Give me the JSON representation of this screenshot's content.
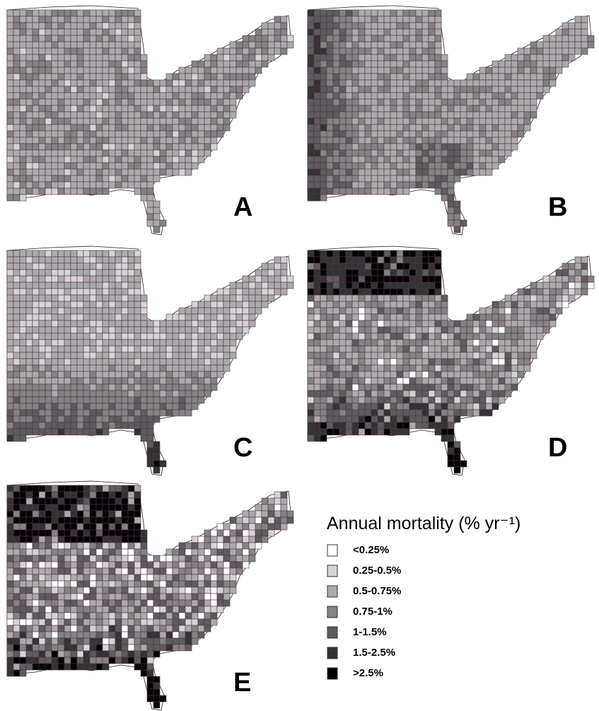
{
  "panels": [
    {
      "label": "A"
    },
    {
      "label": "B"
    },
    {
      "label": "C"
    },
    {
      "label": "D"
    },
    {
      "label": "E"
    }
  ],
  "legend": {
    "title": "Annual mortality (% yr⁻¹)",
    "items": [
      {
        "label": "<0.25%",
        "color": "#ffffff"
      },
      {
        "label": "0.25-0.5%",
        "color": "#d4d4d4"
      },
      {
        "label": "0.5-0.75%",
        "color": "#ababab"
      },
      {
        "label": "0.75-1%",
        "color": "#838383"
      },
      {
        "label": "1-1.5%",
        "color": "#5c5c5c"
      },
      {
        "label": "1.5-2.5%",
        "color": "#333333"
      },
      {
        "label": ">2.5%",
        "color": "#000000"
      }
    ]
  }
}
